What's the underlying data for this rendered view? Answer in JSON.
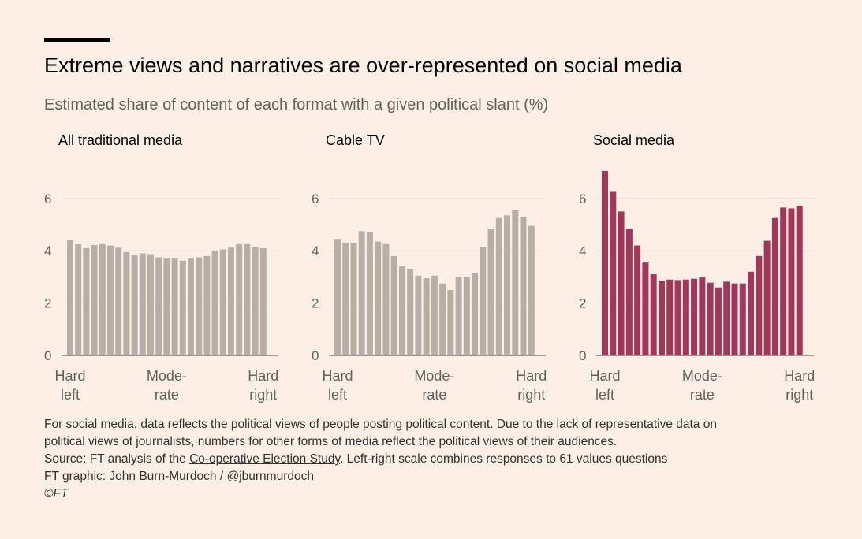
{
  "header": {
    "title": "Extreme views and narratives are over-represented on social media",
    "subtitle": "Estimated share of content of each format with a given political slant (%)"
  },
  "colors": {
    "background": "#fcf0e6",
    "traditional_bar": "#b8aea7",
    "social_bar": "#a0385c",
    "gridline": "#e6d9ce",
    "axis_text": "#66605c"
  },
  "chart_data": [
    {
      "type": "bar",
      "title": "All traditional media",
      "ylim": [
        0,
        7
      ],
      "yticks": [
        "0",
        "2",
        "4",
        "6"
      ],
      "x_tick_labels": [
        [
          "Hard",
          "left"
        ],
        [
          "Mode-",
          "rate"
        ],
        [
          "Hard",
          "right"
        ]
      ],
      "color": "#b8aea7",
      "values": [
        4.4,
        4.25,
        4.1,
        4.22,
        4.25,
        4.2,
        4.12,
        3.95,
        3.85,
        3.9,
        3.87,
        3.75,
        3.7,
        3.7,
        3.62,
        3.7,
        3.75,
        3.8,
        4.0,
        4.05,
        4.12,
        4.25,
        4.25,
        4.15,
        4.1
      ]
    },
    {
      "type": "bar",
      "title": "Cable TV",
      "ylim": [
        0,
        7
      ],
      "yticks": [
        "0",
        "2",
        "4",
        "6"
      ],
      "x_tick_labels": [
        [
          "Hard",
          "left"
        ],
        [
          "Mode-",
          "rate"
        ],
        [
          "Hard",
          "right"
        ]
      ],
      "color": "#b8aea7",
      "values": [
        4.45,
        4.3,
        4.3,
        4.75,
        4.7,
        4.35,
        4.25,
        3.8,
        3.4,
        3.3,
        3.05,
        2.95,
        3.05,
        2.75,
        2.5,
        3.0,
        3.0,
        3.15,
        4.15,
        4.85,
        5.25,
        5.35,
        5.55,
        5.3,
        4.95
      ]
    },
    {
      "type": "bar",
      "title": "Social media",
      "ylim": [
        0,
        7
      ],
      "yticks": [
        "0",
        "2",
        "4",
        "6"
      ],
      "x_tick_labels": [
        [
          "Hard",
          "left"
        ],
        [
          "Mode-",
          "rate"
        ],
        [
          "Hard",
          "right"
        ]
      ],
      "color": "#a0385c",
      "values": [
        7.05,
        6.25,
        5.5,
        4.85,
        4.2,
        3.55,
        3.1,
        2.85,
        2.9,
        2.88,
        2.9,
        2.93,
        2.98,
        2.78,
        2.6,
        2.82,
        2.75,
        2.75,
        3.2,
        3.8,
        4.38,
        5.25,
        5.65,
        5.62,
        5.7
      ]
    }
  ],
  "footer": {
    "note_line1": "For social media, data reflects the political views of people posting political content. Due to the lack of representative data on",
    "note_line2": "political views of journalists, numbers for other forms of media reflect the political views of their audiences.",
    "source_prefix": "Source: FT analysis of the ",
    "source_link": "Co-operative Election Study",
    "source_suffix": ". Left-right scale combines responses to 61 values questions",
    "graphic_credit": "FT graphic: John Burn-Murdoch / @jburnmurdoch",
    "copyright": "©FT"
  }
}
